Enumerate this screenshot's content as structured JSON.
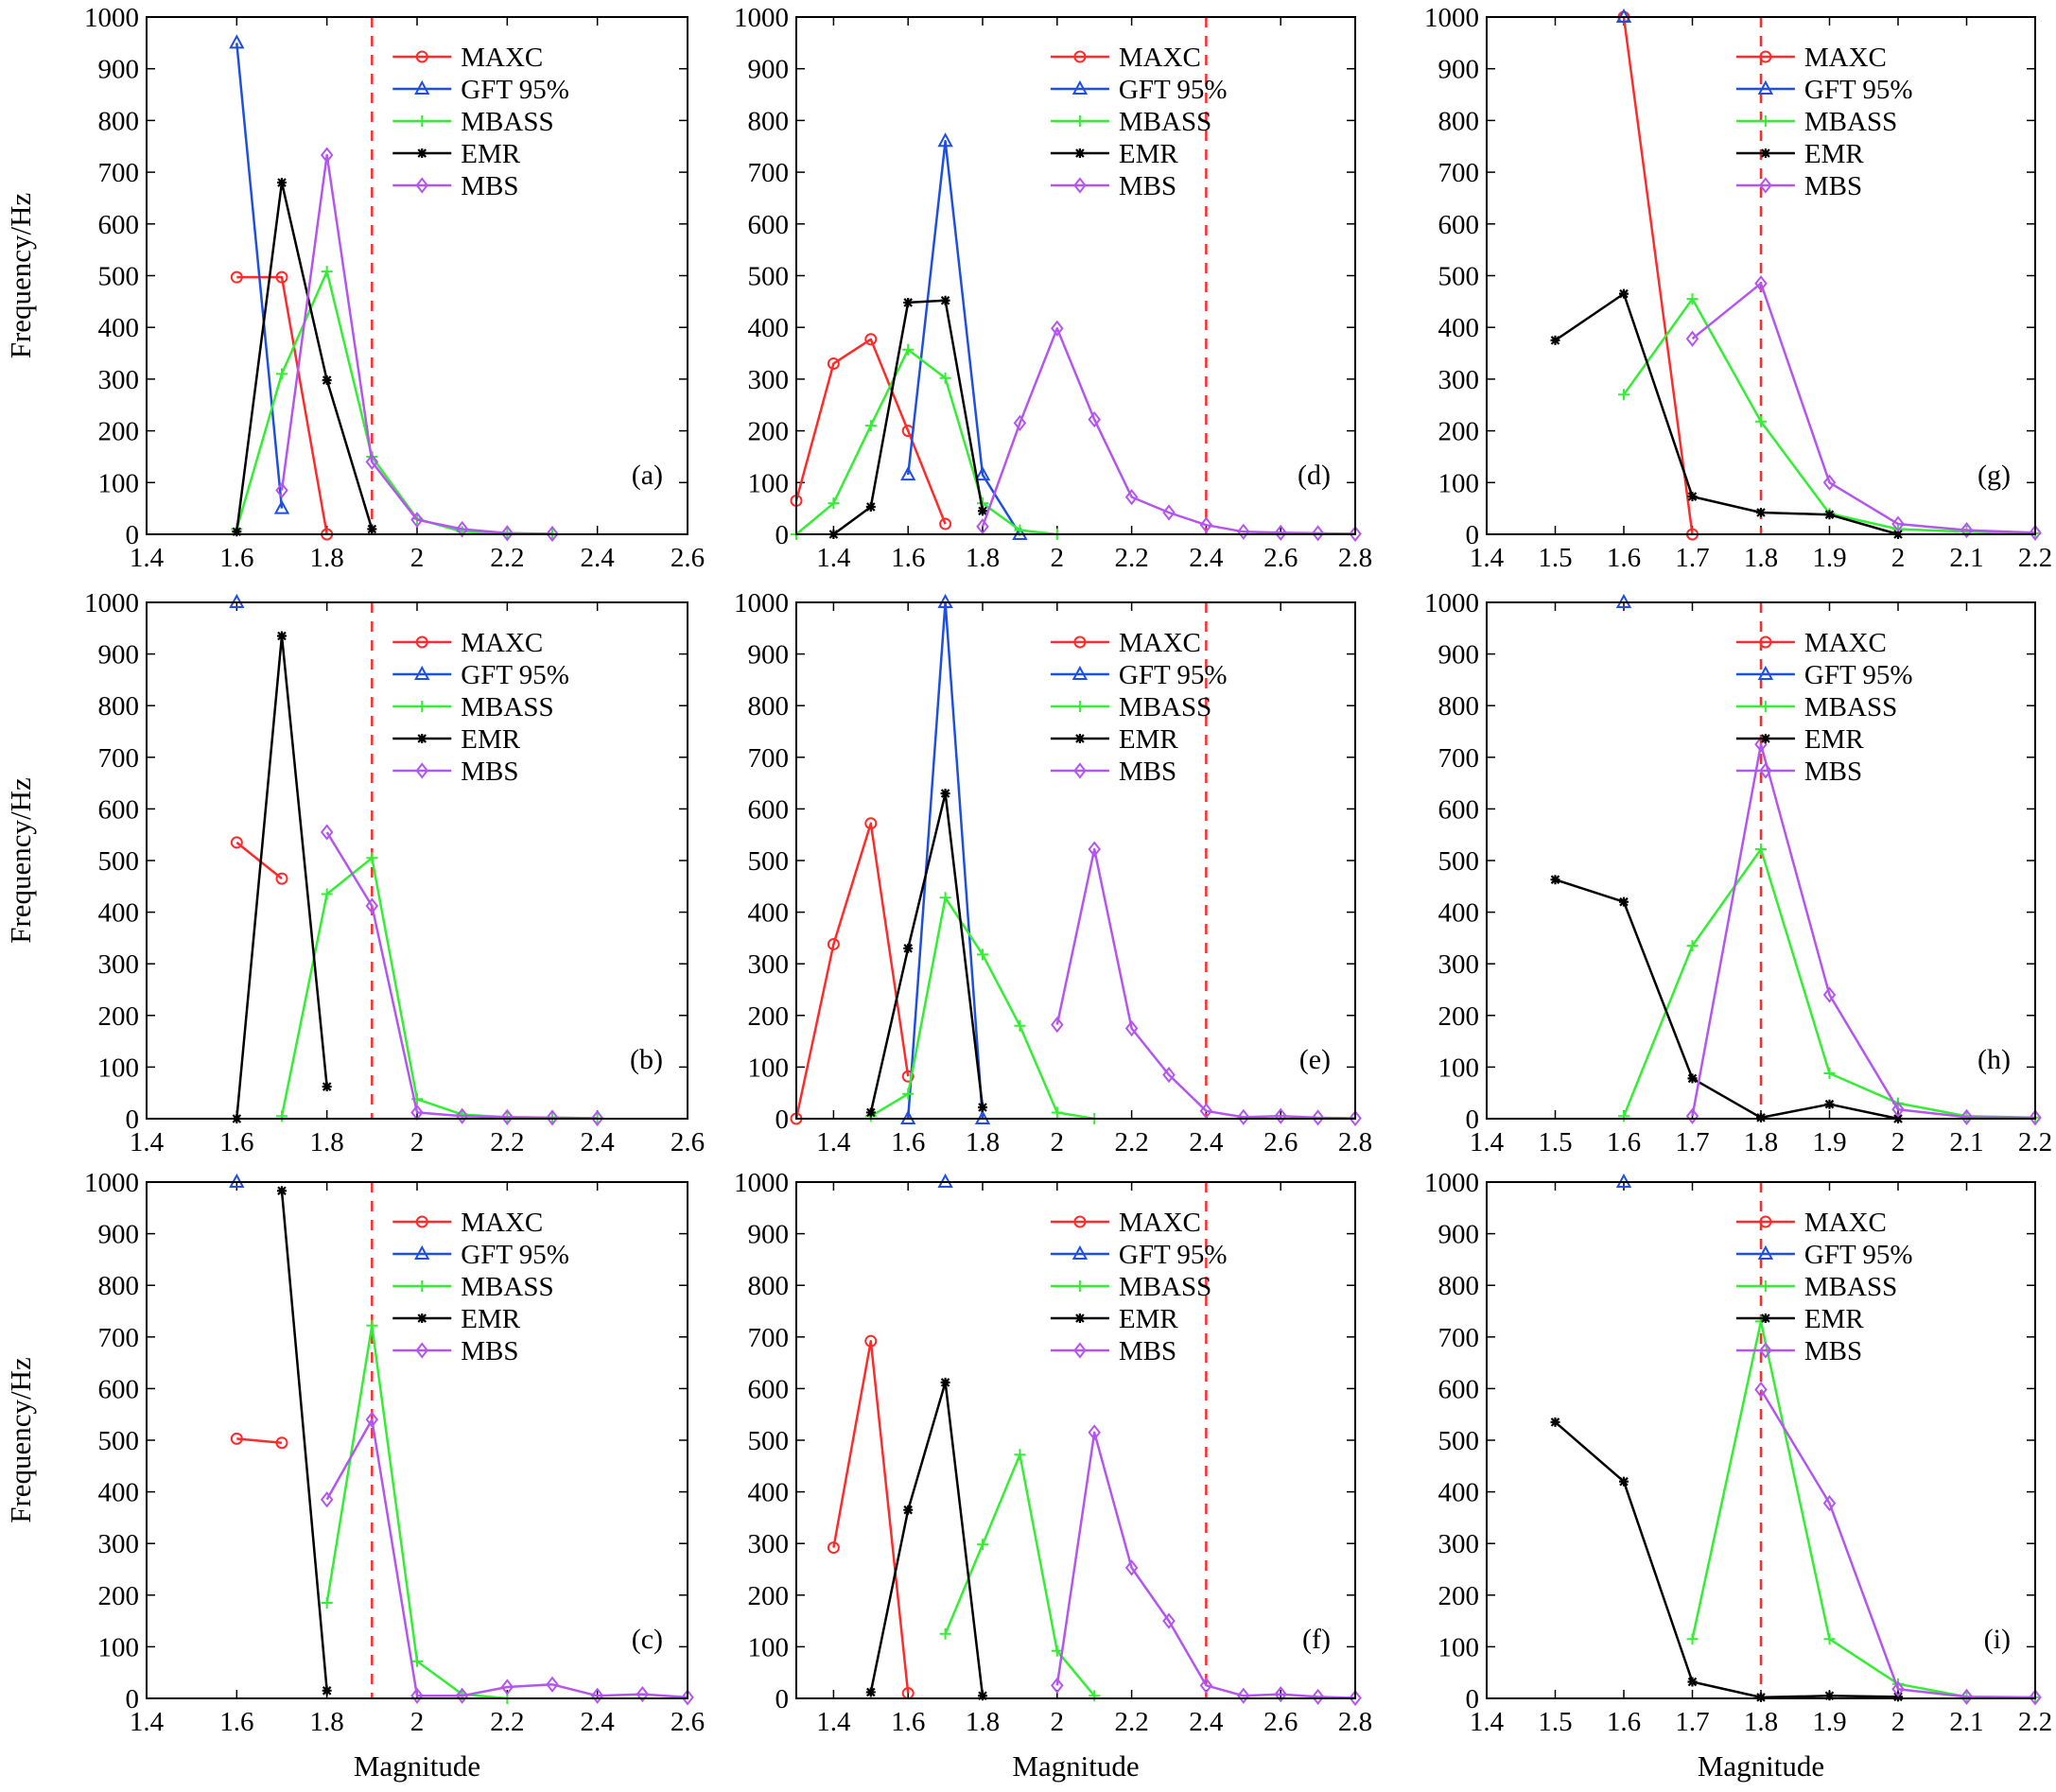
{
  "figure": {
    "ylabel": "Frequency/Hz",
    "xlabel": "Magnitude"
  },
  "series_styles": {
    "MAXC": {
      "color": "#ff2a2a",
      "marker": "circle"
    },
    "GFT 95%": {
      "color": "#1f4fe0",
      "marker": "triangle"
    },
    "MBASS": {
      "color": "#33ee33",
      "marker": "plus"
    },
    "EMR": {
      "color": "#000000",
      "marker": "star"
    },
    "MBS": {
      "color": "#b455f0",
      "marker": "diamond"
    }
  },
  "chart_data": [
    {
      "type": "line",
      "panel_label": "(a)",
      "xlim": [
        1.4,
        2.6
      ],
      "ylim": [
        0,
        1000
      ],
      "xticks": [
        "1.4",
        "1.6",
        "1.8",
        "2",
        "2.2",
        "2.4",
        "2.6"
      ],
      "yticks": [
        "0",
        "100",
        "200",
        "300",
        "400",
        "500",
        "600",
        "700",
        "800",
        "900",
        "1000"
      ],
      "reference_line_x": 1.9,
      "legend": [
        "MAXC",
        "GFT 95%",
        "MBASS",
        "EMR",
        "MBS"
      ],
      "series": [
        {
          "name": "MAXC",
          "x": [
            1.6,
            1.7,
            1.8
          ],
          "y": [
            497,
            497,
            0
          ]
        },
        {
          "name": "GFT 95%",
          "x": [
            1.6,
            1.7
          ],
          "y": [
            950,
            50
          ]
        },
        {
          "name": "MBASS",
          "x": [
            1.6,
            1.7,
            1.8,
            1.9,
            2.0,
            2.1,
            2.2,
            2.3
          ],
          "y": [
            10,
            310,
            508,
            150,
            30,
            5,
            2,
            1
          ]
        },
        {
          "name": "EMR",
          "x": [
            1.6,
            1.7,
            1.8,
            1.9
          ],
          "y": [
            5,
            680,
            298,
            10
          ]
        },
        {
          "name": "MBS",
          "x": [
            1.7,
            1.8,
            1.9,
            2.0,
            2.1,
            2.2,
            2.3
          ],
          "y": [
            85,
            733,
            140,
            28,
            10,
            2,
            1
          ]
        }
      ]
    },
    {
      "type": "line",
      "panel_label": "(d)",
      "xlim": [
        1.3,
        2.8
      ],
      "ylim": [
        0,
        1000
      ],
      "xticks": [
        "1.4",
        "1.6",
        "1.8",
        "2",
        "2.2",
        "2.4",
        "2.6",
        "2.8"
      ],
      "yticks": [
        "0",
        "100",
        "200",
        "300",
        "400",
        "500",
        "600",
        "700",
        "800",
        "900",
        "1000"
      ],
      "reference_line_x": 2.4,
      "legend": [
        "MAXC",
        "GFT 95%",
        "MBASS",
        "EMR",
        "MBS"
      ],
      "series": [
        {
          "name": "MAXC",
          "x": [
            1.3,
            1.4,
            1.5,
            1.6,
            1.7
          ],
          "y": [
            65,
            330,
            377,
            200,
            20
          ]
        },
        {
          "name": "GFT 95%",
          "x": [
            1.6,
            1.7,
            1.8,
            1.9
          ],
          "y": [
            115,
            760,
            115,
            0
          ]
        },
        {
          "name": "MBASS",
          "x": [
            1.3,
            1.4,
            1.5,
            1.6,
            1.7,
            1.8,
            1.9,
            2.0
          ],
          "y": [
            0,
            60,
            210,
            357,
            302,
            60,
            8,
            0
          ]
        },
        {
          "name": "EMR",
          "x": [
            1.4,
            1.5,
            1.6,
            1.7,
            1.8
          ],
          "y": [
            0,
            53,
            448,
            452,
            45
          ]
        },
        {
          "name": "MBS",
          "x": [
            1.8,
            1.9,
            2.0,
            2.1,
            2.2,
            2.3,
            2.4,
            2.5,
            2.6,
            2.7,
            2.8
          ],
          "y": [
            15,
            215,
            398,
            222,
            72,
            42,
            18,
            5,
            3,
            2,
            1
          ]
        }
      ]
    },
    {
      "type": "line",
      "panel_label": "(g)",
      "xlim": [
        1.4,
        2.2
      ],
      "ylim": [
        0,
        1000
      ],
      "xticks": [
        "1.4",
        "1.5",
        "1.6",
        "1.7",
        "1.8",
        "1.9",
        "2",
        "2.1",
        "2.2"
      ],
      "yticks": [
        "0",
        "100",
        "200",
        "300",
        "400",
        "500",
        "600",
        "700",
        "800",
        "900",
        "1000"
      ],
      "reference_line_x": 1.8,
      "legend": [
        "MAXC",
        "GFT 95%",
        "MBASS",
        "EMR",
        "MBS"
      ],
      "series": [
        {
          "name": "MAXC",
          "x": [
            1.6,
            1.7
          ],
          "y": [
            1000,
            0
          ]
        },
        {
          "name": "GFT 95%",
          "x": [
            1.6
          ],
          "y": [
            1000
          ]
        },
        {
          "name": "MBASS",
          "x": [
            1.6,
            1.7,
            1.8,
            1.9,
            2.0,
            2.1,
            2.2
          ],
          "y": [
            270,
            455,
            218,
            40,
            10,
            5,
            2
          ]
        },
        {
          "name": "EMR",
          "x": [
            1.5,
            1.6,
            1.7,
            1.8,
            1.9,
            2.0
          ],
          "y": [
            375,
            465,
            73,
            42,
            38,
            0
          ]
        },
        {
          "name": "MBS",
          "x": [
            1.7,
            1.8,
            1.9,
            2.0,
            2.1,
            2.2
          ],
          "y": [
            378,
            485,
            100,
            20,
            8,
            3
          ]
        }
      ]
    },
    {
      "type": "line",
      "panel_label": "(b)",
      "xlim": [
        1.4,
        2.6
      ],
      "ylim": [
        0,
        1000
      ],
      "xticks": [
        "1.4",
        "1.6",
        "1.8",
        "2",
        "2.2",
        "2.4",
        "2.6"
      ],
      "yticks": [
        "0",
        "100",
        "200",
        "300",
        "400",
        "500",
        "600",
        "700",
        "800",
        "900",
        "1000"
      ],
      "reference_line_x": 1.9,
      "legend": [
        "MAXC",
        "GFT 95%",
        "MBASS",
        "EMR",
        "MBS"
      ],
      "series": [
        {
          "name": "MAXC",
          "x": [
            1.6,
            1.7
          ],
          "y": [
            535,
            465
          ]
        },
        {
          "name": "GFT 95%",
          "x": [
            1.6
          ],
          "y": [
            1000
          ]
        },
        {
          "name": "MBASS",
          "x": [
            1.7,
            1.8,
            1.9,
            2.0,
            2.1,
            2.2,
            2.3,
            2.4
          ],
          "y": [
            5,
            435,
            505,
            38,
            8,
            3,
            2,
            1
          ]
        },
        {
          "name": "EMR",
          "x": [
            1.6,
            1.7,
            1.8
          ],
          "y": [
            0,
            935,
            62
          ]
        },
        {
          "name": "MBS",
          "x": [
            1.8,
            1.9,
            2.0,
            2.1,
            2.2,
            2.3,
            2.4
          ],
          "y": [
            555,
            412,
            12,
            5,
            3,
            2,
            1
          ]
        }
      ]
    },
    {
      "type": "line",
      "panel_label": "(e)",
      "xlim": [
        1.3,
        2.8
      ],
      "ylim": [
        0,
        1000
      ],
      "xticks": [
        "1.4",
        "1.6",
        "1.8",
        "2",
        "2.2",
        "2.4",
        "2.6",
        "2.8"
      ],
      "yticks": [
        "0",
        "100",
        "200",
        "300",
        "400",
        "500",
        "600",
        "700",
        "800",
        "900",
        "1000"
      ],
      "reference_line_x": 2.4,
      "legend": [
        "MAXC",
        "GFT 95%",
        "MBASS",
        "EMR",
        "MBS"
      ],
      "series": [
        {
          "name": "MAXC",
          "x": [
            1.3,
            1.4,
            1.5,
            1.6
          ],
          "y": [
            0,
            338,
            572,
            82
          ]
        },
        {
          "name": "GFT 95%",
          "x": [
            1.6,
            1.7,
            1.8
          ],
          "y": [
            0,
            1000,
            0
          ]
        },
        {
          "name": "MBASS",
          "x": [
            1.5,
            1.6,
            1.7,
            1.8,
            1.9,
            2.0,
            2.1
          ],
          "y": [
            5,
            48,
            428,
            318,
            180,
            12,
            0
          ]
        },
        {
          "name": "EMR",
          "x": [
            1.5,
            1.6,
            1.7,
            1.8
          ],
          "y": [
            12,
            330,
            630,
            22
          ]
        },
        {
          "name": "MBS",
          "x": [
            2.0,
            2.1,
            2.2,
            2.3,
            2.4,
            2.5,
            2.6,
            2.7,
            2.8
          ],
          "y": [
            182,
            522,
            175,
            85,
            15,
            3,
            5,
            2,
            1
          ]
        }
      ]
    },
    {
      "type": "line",
      "panel_label": "(h)",
      "xlim": [
        1.4,
        2.2
      ],
      "ylim": [
        0,
        1000
      ],
      "xticks": [
        "1.4",
        "1.5",
        "1.6",
        "1.7",
        "1.8",
        "1.9",
        "2",
        "2.1",
        "2.2"
      ],
      "yticks": [
        "0",
        "100",
        "200",
        "300",
        "400",
        "500",
        "600",
        "700",
        "800",
        "900",
        "1000"
      ],
      "reference_line_x": 1.8,
      "legend": [
        "MAXC",
        "GFT 95%",
        "MBASS",
        "EMR",
        "MBS"
      ],
      "series": [
        {
          "name": "GFT 95%",
          "x": [
            1.6
          ],
          "y": [
            1000
          ]
        },
        {
          "name": "MBASS",
          "x": [
            1.6,
            1.7,
            1.8,
            1.9,
            2.0,
            2.1,
            2.2
          ],
          "y": [
            5,
            335,
            522,
            88,
            30,
            5,
            2
          ]
        },
        {
          "name": "EMR",
          "x": [
            1.5,
            1.6,
            1.7,
            1.8,
            1.9,
            2.0
          ],
          "y": [
            463,
            420,
            78,
            2,
            28,
            0
          ]
        },
        {
          "name": "MBS",
          "x": [
            1.7,
            1.8,
            1.9,
            2.0,
            2.1,
            2.2
          ],
          "y": [
            5,
            725,
            240,
            18,
            3,
            2
          ]
        }
      ]
    },
    {
      "type": "line",
      "panel_label": "(c)",
      "xlim": [
        1.4,
        2.6
      ],
      "ylim": [
        0,
        1000
      ],
      "xticks": [
        "1.4",
        "1.6",
        "1.8",
        "2",
        "2.2",
        "2.4",
        "2.6"
      ],
      "yticks": [
        "0",
        "100",
        "200",
        "300",
        "400",
        "500",
        "600",
        "700",
        "800",
        "900",
        "1000"
      ],
      "reference_line_x": 1.9,
      "legend": [
        "MAXC",
        "GFT 95%",
        "MBASS",
        "EMR",
        "MBS"
      ],
      "series": [
        {
          "name": "MAXC",
          "x": [
            1.6,
            1.7
          ],
          "y": [
            503,
            495
          ]
        },
        {
          "name": "GFT 95%",
          "x": [
            1.6
          ],
          "y": [
            1000
          ]
        },
        {
          "name": "MBASS",
          "x": [
            1.8,
            1.9,
            2.0,
            2.1,
            2.2
          ],
          "y": [
            185,
            722,
            72,
            8,
            0
          ]
        },
        {
          "name": "EMR",
          "x": [
            1.7,
            1.8
          ],
          "y": [
            983,
            15
          ]
        },
        {
          "name": "MBS",
          "x": [
            1.8,
            1.9,
            2.0,
            2.1,
            2.2,
            2.3,
            2.4,
            2.5,
            2.6
          ],
          "y": [
            385,
            540,
            5,
            5,
            22,
            27,
            5,
            8,
            2
          ]
        }
      ]
    },
    {
      "type": "line",
      "panel_label": "(f)",
      "xlim": [
        1.3,
        2.8
      ],
      "ylim": [
        0,
        1000
      ],
      "xticks": [
        "1.4",
        "1.6",
        "1.8",
        "2",
        "2.2",
        "2.4",
        "2.6",
        "2.8"
      ],
      "yticks": [
        "0",
        "100",
        "200",
        "300",
        "400",
        "500",
        "600",
        "700",
        "800",
        "900",
        "1000"
      ],
      "reference_line_x": 2.4,
      "legend": [
        "MAXC",
        "GFT 95%",
        "MBASS",
        "EMR",
        "MBS"
      ],
      "series": [
        {
          "name": "MAXC",
          "x": [
            1.4,
            1.5,
            1.6
          ],
          "y": [
            292,
            692,
            10
          ]
        },
        {
          "name": "GFT 95%",
          "x": [
            1.7
          ],
          "y": [
            1000
          ]
        },
        {
          "name": "MBASS",
          "x": [
            1.7,
            1.8,
            1.9,
            2.0,
            2.1
          ],
          "y": [
            125,
            298,
            472,
            92,
            5
          ]
        },
        {
          "name": "EMR",
          "x": [
            1.5,
            1.6,
            1.7,
            1.8
          ],
          "y": [
            12,
            365,
            612,
            5
          ]
        },
        {
          "name": "MBS",
          "x": [
            2.0,
            2.1,
            2.2,
            2.3,
            2.4,
            2.5,
            2.6,
            2.7,
            2.8
          ],
          "y": [
            25,
            515,
            253,
            150,
            25,
            5,
            8,
            3,
            1
          ]
        }
      ]
    },
    {
      "type": "line",
      "panel_label": "(i)",
      "xlim": [
        1.4,
        2.2
      ],
      "ylim": [
        0,
        1000
      ],
      "xticks": [
        "1.4",
        "1.5",
        "1.6",
        "1.7",
        "1.8",
        "1.9",
        "2",
        "2.1",
        "2.2"
      ],
      "yticks": [
        "0",
        "100",
        "200",
        "300",
        "400",
        "500",
        "600",
        "700",
        "800",
        "900",
        "1000"
      ],
      "reference_line_x": 1.8,
      "legend": [
        "MAXC",
        "GFT 95%",
        "MBASS",
        "EMR",
        "MBS"
      ],
      "series": [
        {
          "name": "GFT 95%",
          "x": [
            1.6
          ],
          "y": [
            1000
          ]
        },
        {
          "name": "MBASS",
          "x": [
            1.7,
            1.8,
            1.9,
            2.0,
            2.1,
            2.2
          ],
          "y": [
            115,
            730,
            115,
            28,
            3,
            2
          ]
        },
        {
          "name": "EMR",
          "x": [
            1.5,
            1.6,
            1.7,
            1.8,
            1.9,
            2.0
          ],
          "y": [
            535,
            420,
            32,
            2,
            5,
            3
          ]
        },
        {
          "name": "MBS",
          "x": [
            1.8,
            1.9,
            2.0,
            2.1,
            2.2
          ],
          "y": [
            598,
            378,
            18,
            3,
            2
          ]
        }
      ]
    }
  ]
}
